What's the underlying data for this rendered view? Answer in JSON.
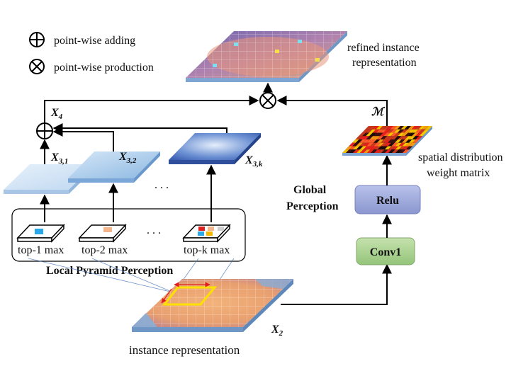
{
  "legend": {
    "adding": "point-wise adding",
    "production": "point-wise production"
  },
  "labels": {
    "refined": [
      "refined instance",
      "representation"
    ],
    "instance": "instance representation",
    "spatial": [
      "spatial distribution",
      "weight matrix"
    ],
    "global": [
      "Global",
      "Perception"
    ],
    "local": "Local Pyramid Perception",
    "relu": "Relu",
    "conv1": "Conv1",
    "dots": ". . .",
    "top1": "top-1 max",
    "top2": "top-2 max",
    "topk": "top-k max"
  },
  "math": {
    "x4": "X",
    "x4_sub": "4",
    "x31": "X",
    "x31_sub": "3,1",
    "x32": "X",
    "x32_sub": "3,2",
    "x3k": "X",
    "x3k_sub": "3,k",
    "x2": "X",
    "x2_sub": "2",
    "m": "ℳ"
  },
  "colors": {
    "arrow": "#000000",
    "relu_fill": "#9aa6d8",
    "conv_fill": "#a7cf8f",
    "highlight": "#ffe100",
    "red_arrow": "#e02020"
  }
}
